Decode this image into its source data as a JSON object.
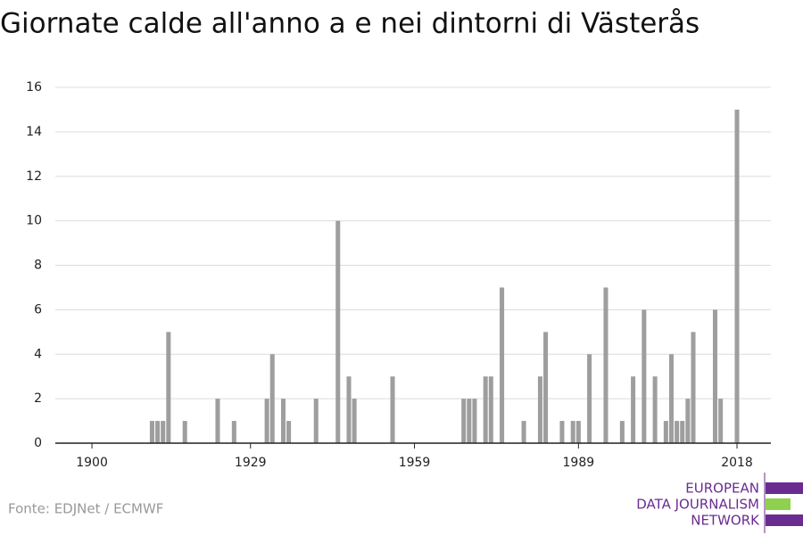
{
  "chart_data": {
    "type": "bar",
    "title": "Giornate calde all'anno a e nei dintorni di Västerås",
    "x": [
      1911,
      1912,
      1913,
      1914,
      1917,
      1923,
      1926,
      1932,
      1933,
      1935,
      1936,
      1941,
      1945,
      1947,
      1948,
      1955,
      1968,
      1969,
      1970,
      1972,
      1973,
      1975,
      1979,
      1982,
      1983,
      1986,
      1988,
      1989,
      1991,
      1994,
      1997,
      1999,
      2001,
      2003,
      2005,
      2006,
      2007,
      2008,
      2009,
      2010,
      2014,
      2015,
      2018
    ],
    "values": [
      1,
      1,
      1,
      5,
      1,
      2,
      1,
      2,
      4,
      2,
      1,
      2,
      10,
      3,
      2,
      3,
      2,
      2,
      2,
      3,
      3,
      7,
      1,
      3,
      5,
      1,
      1,
      1,
      4,
      7,
      1,
      3,
      6,
      3,
      1,
      4,
      1,
      1,
      2,
      5,
      6,
      2,
      15
    ],
    "color": "#9e9e9e",
    "xlim": [
      1893.3,
      2024.2
    ],
    "xticks": [
      1900,
      1929,
      1959,
      1989,
      2018
    ],
    "ylim": [
      0,
      16
    ],
    "yticks": [
      0,
      2,
      4,
      6,
      8,
      10,
      12,
      14,
      16
    ],
    "grid": true
  },
  "source": "Fonte: EDJNet / ECMWF",
  "logo": [
    "EUROPEAN",
    "DATA JOURNALISM",
    "NETWORK"
  ]
}
